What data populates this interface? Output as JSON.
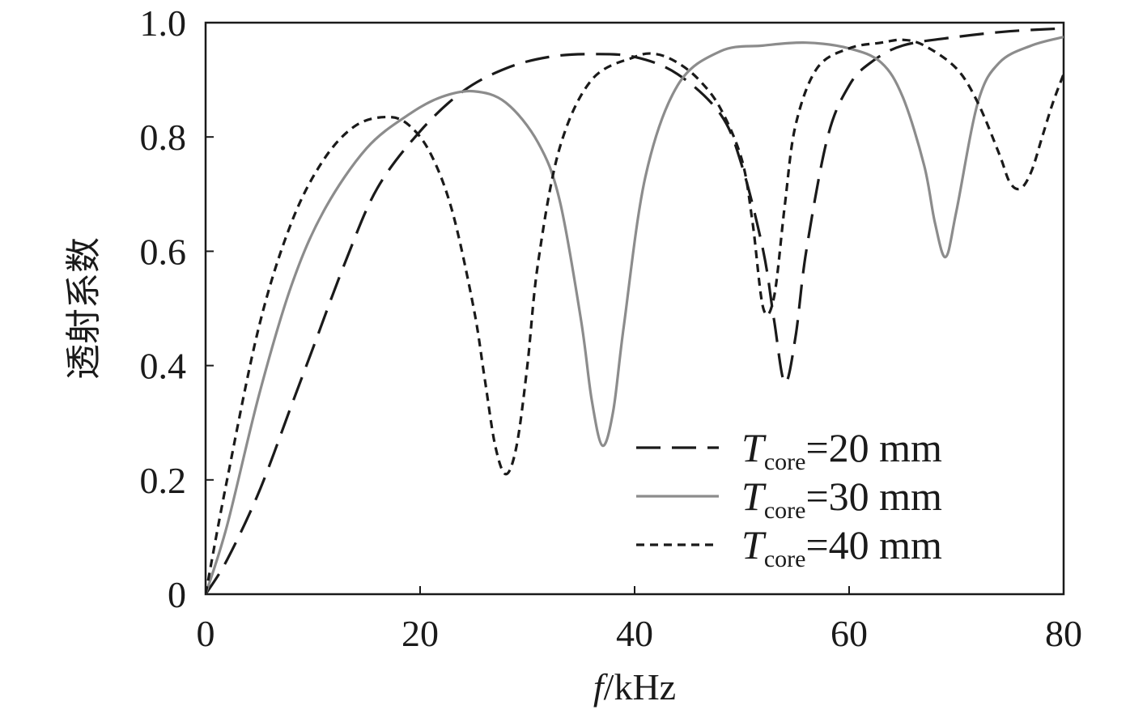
{
  "chart_data": {
    "type": "line",
    "xlabel": {
      "italic": "f",
      "rest": "/kHz"
    },
    "ylabel": "透射系数",
    "xlim": [
      0,
      80
    ],
    "ylim": [
      0,
      1.0
    ],
    "x_ticks": [
      0,
      20,
      40,
      60,
      80
    ],
    "x_tick_labels": [
      "0",
      "20",
      "40",
      "60",
      "80"
    ],
    "y_ticks": [
      0,
      0.2,
      0.4,
      0.6,
      0.8,
      1.0
    ],
    "y_tick_labels": [
      "0",
      "0.2",
      "0.4",
      "0.6",
      "0.8",
      "1.0"
    ],
    "grid": false,
    "legend_position": "bottom-right",
    "series": [
      {
        "legend_main": "T",
        "legend_sub": "core",
        "legend_rest": "=20 mm",
        "style": "long-dash",
        "color": "#1a1a1a",
        "x": [
          0,
          2,
          5,
          8,
          10,
          13,
          16,
          20,
          24,
          28,
          32,
          36,
          40,
          44,
          48,
          50,
          52,
          53,
          54,
          55,
          56,
          58,
          60,
          62,
          65,
          70,
          75,
          80
        ],
        "y": [
          0,
          0.06,
          0.18,
          0.33,
          0.43,
          0.58,
          0.71,
          0.81,
          0.88,
          0.92,
          0.94,
          0.945,
          0.94,
          0.91,
          0.84,
          0.75,
          0.6,
          0.48,
          0.37,
          0.45,
          0.6,
          0.8,
          0.89,
          0.93,
          0.96,
          0.975,
          0.985,
          0.99
        ]
      },
      {
        "legend_main": "T",
        "legend_sub": "core",
        "legend_rest": "=30 mm",
        "style": "solid",
        "color": "#8c8c8c",
        "x": [
          0,
          2,
          5,
          8,
          11,
          15,
          19,
          22,
          25,
          28,
          31,
          33,
          35,
          36,
          37,
          38,
          39,
          41,
          44,
          48,
          52,
          56,
          60,
          63,
          65,
          67,
          68,
          69,
          70,
          72,
          74,
          77,
          80
        ],
        "y": [
          0,
          0.12,
          0.35,
          0.54,
          0.67,
          0.78,
          0.84,
          0.87,
          0.88,
          0.86,
          0.79,
          0.69,
          0.48,
          0.34,
          0.26,
          0.32,
          0.47,
          0.73,
          0.89,
          0.95,
          0.96,
          0.965,
          0.955,
          0.93,
          0.87,
          0.75,
          0.65,
          0.59,
          0.67,
          0.86,
          0.93,
          0.96,
          0.975
        ]
      },
      {
        "legend_main": "T",
        "legend_sub": "core",
        "legend_rest": "=40 mm",
        "style": "short-dash",
        "color": "#1a1a1a",
        "x": [
          0,
          2,
          5,
          8,
          11,
          14,
          17,
          19,
          21,
          23,
          25,
          26,
          27,
          28,
          29,
          30,
          31,
          33,
          36,
          40,
          42,
          44,
          46,
          48,
          50,
          51,
          52,
          53,
          54,
          55,
          57,
          60,
          63,
          65,
          67,
          70,
          72,
          74,
          75,
          76,
          77,
          78,
          79,
          80
        ],
        "y": [
          0,
          0.2,
          0.47,
          0.65,
          0.76,
          0.82,
          0.835,
          0.82,
          0.77,
          0.67,
          0.5,
          0.38,
          0.26,
          0.21,
          0.26,
          0.4,
          0.58,
          0.78,
          0.9,
          0.94,
          0.945,
          0.93,
          0.9,
          0.85,
          0.76,
          0.65,
          0.5,
          0.52,
          0.68,
          0.82,
          0.92,
          0.955,
          0.965,
          0.97,
          0.96,
          0.92,
          0.86,
          0.77,
          0.72,
          0.71,
          0.74,
          0.8,
          0.86,
          0.91
        ]
      }
    ]
  }
}
